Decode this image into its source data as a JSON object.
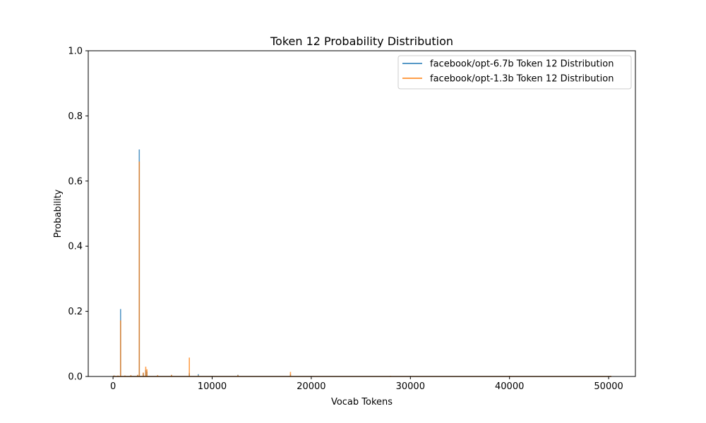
{
  "chart_data": {
    "type": "line",
    "title": "Token 12 Probability Distribution",
    "xlabel": "Vocab Tokens",
    "ylabel": "Probability",
    "xlim": [
      -2500,
      52700
    ],
    "ylim": [
      0,
      1.0
    ],
    "xticks": [
      0,
      10000,
      20000,
      30000,
      40000,
      50000
    ],
    "yticks": [
      0.0,
      0.2,
      0.4,
      0.6,
      0.8,
      1.0
    ],
    "grid": false,
    "legend_position": "top-right",
    "vocab_size": 50272,
    "series": [
      {
        "name": "facebook/opt-6.7b Token 12 Distribution",
        "color": "#1f77b4",
        "alpha": 0.75,
        "spikes": [
          {
            "x": 100,
            "y": 0.003
          },
          {
            "x": 500,
            "y": 0.002
          },
          {
            "x": 760,
            "y": 0.207
          },
          {
            "x": 1200,
            "y": 0.002
          },
          {
            "x": 1800,
            "y": 0.003
          },
          {
            "x": 2480,
            "y": 0.004
          },
          {
            "x": 2650,
            "y": 0.697
          },
          {
            "x": 3050,
            "y": 0.01
          },
          {
            "x": 3300,
            "y": 0.02
          },
          {
            "x": 3420,
            "y": 0.015
          },
          {
            "x": 4500,
            "y": 0.003
          },
          {
            "x": 5900,
            "y": 0.004
          },
          {
            "x": 7700,
            "y": 0.01
          },
          {
            "x": 8600,
            "y": 0.007
          },
          {
            "x": 12600,
            "y": 0.005
          },
          {
            "x": 17900,
            "y": 0.006
          },
          {
            "x": 28000,
            "y": 0.002
          },
          {
            "x": 40000,
            "y": 0.002
          },
          {
            "x": 50200,
            "y": 0.002
          }
        ]
      },
      {
        "name": "facebook/opt-1.3b Token 12 Distribution",
        "color": "#ff7f0e",
        "alpha": 0.75,
        "spikes": [
          {
            "x": 100,
            "y": 0.003
          },
          {
            "x": 500,
            "y": 0.003
          },
          {
            "x": 760,
            "y": 0.172
          },
          {
            "x": 1200,
            "y": 0.003
          },
          {
            "x": 1800,
            "y": 0.004
          },
          {
            "x": 2480,
            "y": 0.005
          },
          {
            "x": 2650,
            "y": 0.66
          },
          {
            "x": 3050,
            "y": 0.012
          },
          {
            "x": 3300,
            "y": 0.03
          },
          {
            "x": 3420,
            "y": 0.022
          },
          {
            "x": 4500,
            "y": 0.004
          },
          {
            "x": 5900,
            "y": 0.005
          },
          {
            "x": 7700,
            "y": 0.058
          },
          {
            "x": 8600,
            "y": 0.003
          },
          {
            "x": 12600,
            "y": 0.004
          },
          {
            "x": 17900,
            "y": 0.014
          },
          {
            "x": 28000,
            "y": 0.002
          },
          {
            "x": 40000,
            "y": 0.002
          },
          {
            "x": 50200,
            "y": 0.002
          }
        ]
      }
    ]
  }
}
